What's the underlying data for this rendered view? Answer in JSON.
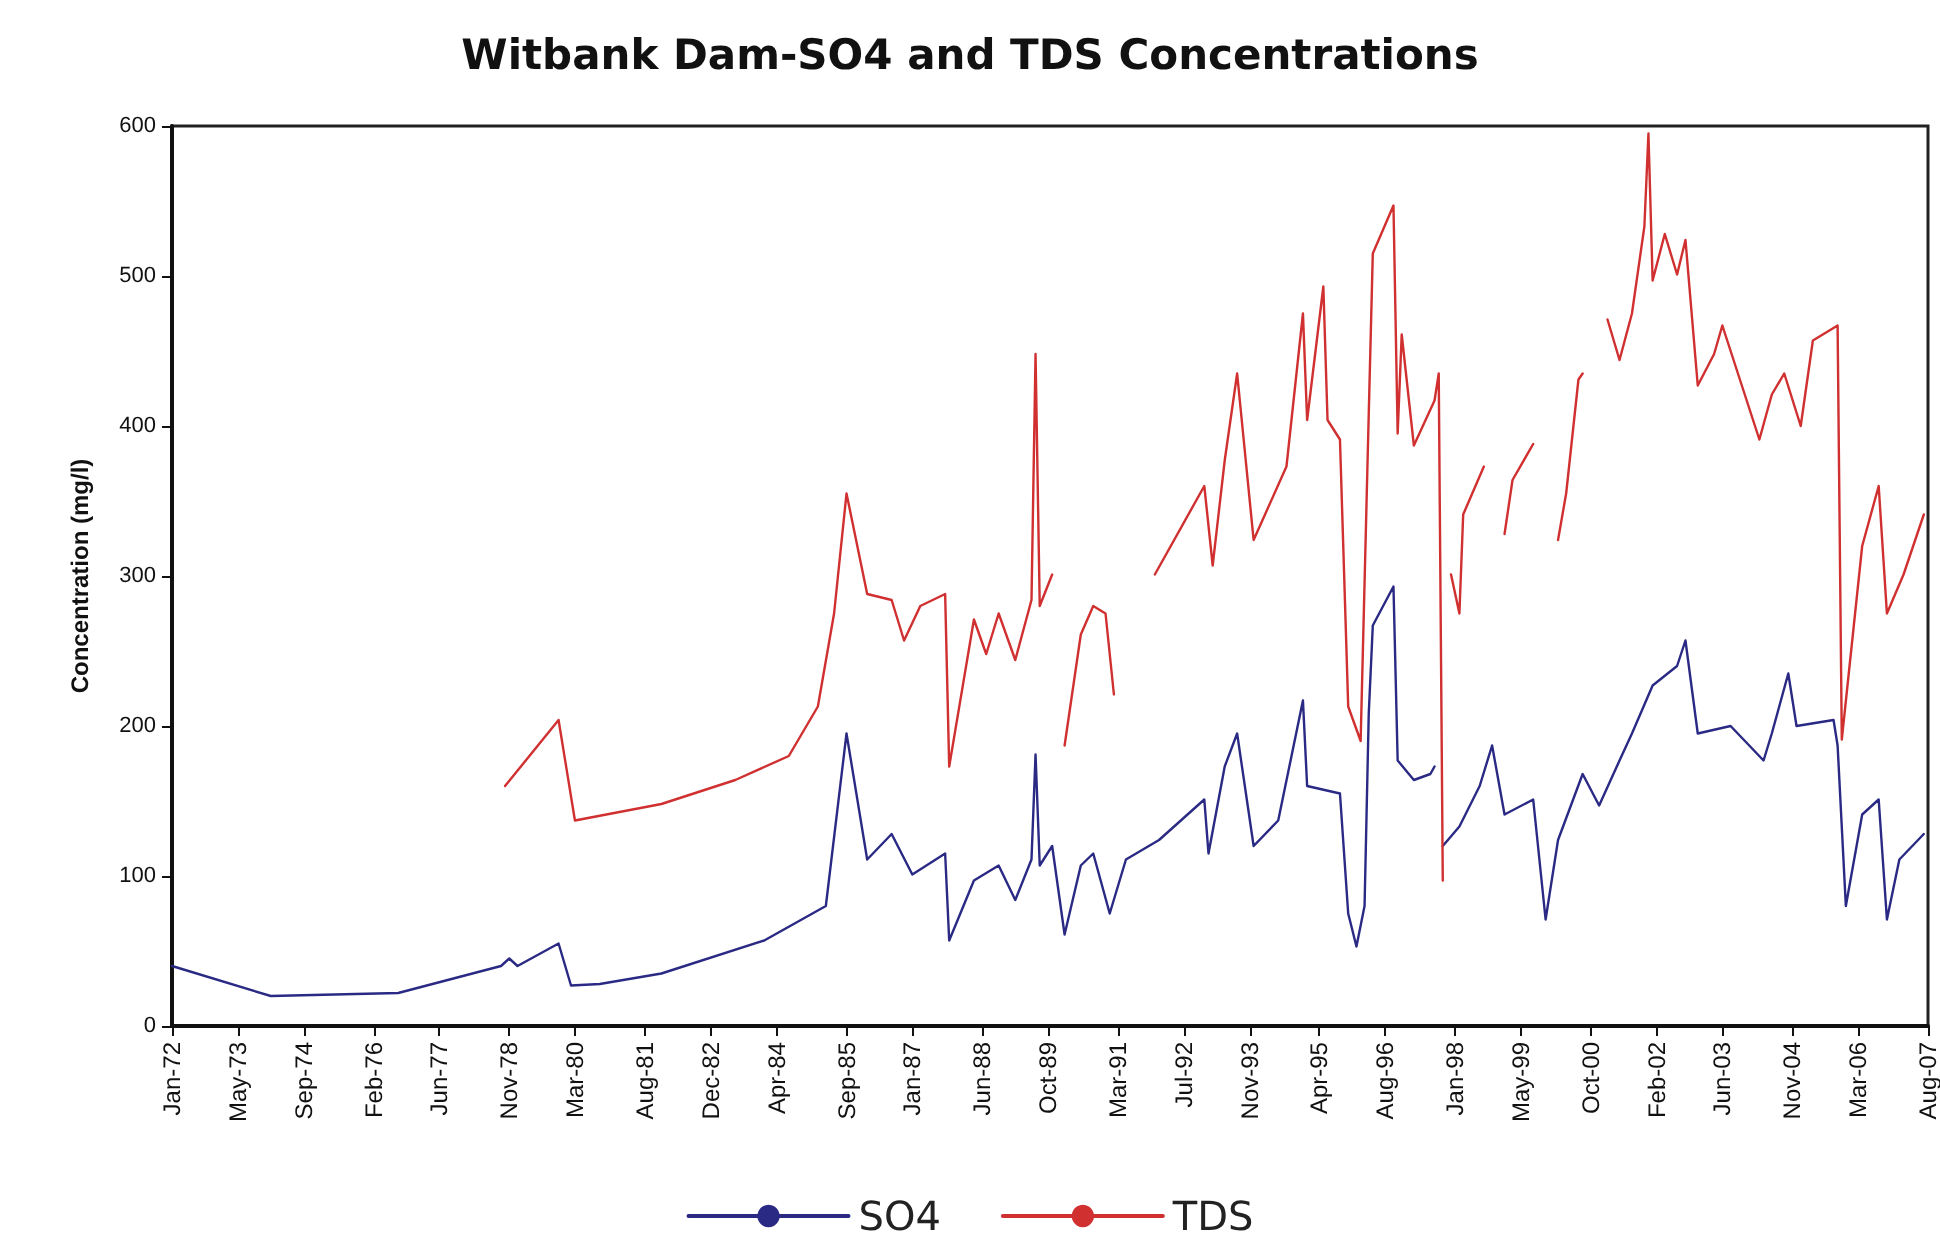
{
  "chart_data": {
    "type": "line",
    "title": "Witbank Dam-SO4 and TDS Concentrations",
    "ylabel": "Concentration (mg/l)",
    "xlim": [
      "1972-01",
      "2007-08"
    ],
    "xticks": [
      {
        "value": "1972-01",
        "label": "Jan-72"
      },
      {
        "value": "1973-05",
        "label": "May-73"
      },
      {
        "value": "1974-09",
        "label": "Sep-74"
      },
      {
        "value": "1976-02",
        "label": "Feb-76"
      },
      {
        "value": "1977-06",
        "label": "Jun-77"
      },
      {
        "value": "1978-11",
        "label": "Nov-78"
      },
      {
        "value": "1980-03",
        "label": "Mar-80"
      },
      {
        "value": "1981-08",
        "label": "Aug-81"
      },
      {
        "value": "1982-12",
        "label": "Dec-82"
      },
      {
        "value": "1984-04",
        "label": "Apr-84"
      },
      {
        "value": "1985-09",
        "label": "Sep-85"
      },
      {
        "value": "1987-01",
        "label": "Jan-87"
      },
      {
        "value": "1988-06",
        "label": "Jun-88"
      },
      {
        "value": "1989-10",
        "label": "Oct-89"
      },
      {
        "value": "1991-03",
        "label": "Mar-91"
      },
      {
        "value": "1992-07",
        "label": "Jul-92"
      },
      {
        "value": "1993-11",
        "label": "Nov-93"
      },
      {
        "value": "1995-04",
        "label": "Apr-95"
      },
      {
        "value": "1996-08",
        "label": "Aug-96"
      },
      {
        "value": "1998-01",
        "label": "Jan-98"
      },
      {
        "value": "1999-05",
        "label": "May-99"
      },
      {
        "value": "2000-10",
        "label": "Oct-00"
      },
      {
        "value": "2002-02",
        "label": "Feb-02"
      },
      {
        "value": "2003-06",
        "label": "Jun-03"
      },
      {
        "value": "2004-11",
        "label": "Nov-04"
      },
      {
        "value": "2006-03",
        "label": "Mar-06"
      },
      {
        "value": "2007-08",
        "label": "Aug-07"
      }
    ],
    "ylim": [
      0,
      600
    ],
    "yticks": [
      0,
      100,
      200,
      300,
      400,
      500,
      600
    ],
    "grid": false,
    "legend": "bottom",
    "marker": "none",
    "line_style": "solid",
    "series": [
      {
        "name": "SO4",
        "color": "#2a2a85",
        "x": [
          "1972-01",
          "1974-01",
          "1976-08",
          "1978-09",
          "1978-11",
          "1979-01",
          "1979-11",
          "1980-02",
          "1980-09",
          "1981-12",
          "1984-01",
          "1985-04",
          "1985-09",
          "1986-02",
          "1986-08",
          "1987-01",
          "1987-09",
          "1987-10",
          "1988-04",
          "1988-10",
          "1989-02",
          "1989-06",
          "1989-07",
          "1989-08",
          "1989-11",
          "1990-02",
          "1990-06",
          "1990-09",
          "1991-01",
          "1991-05",
          "1992-01",
          "1992-12",
          "1993-01",
          "1993-05",
          "1993-08",
          "1993-12",
          "1994-06",
          "1994-12",
          "1995-01",
          "1995-09",
          "1995-11",
          "1996-01",
          "1996-03",
          "1996-04",
          "1996-05",
          "1996-10",
          "1996-11",
          "1997-03",
          "1997-07",
          "1997-08",
          "1997-09",
          "1997-10",
          "1998-02",
          "1998-07",
          "1998-10",
          "1999-01",
          "1999-08",
          "1999-11",
          "2000-02",
          "2000-08",
          "2000-12",
          "2001-05",
          "2001-08",
          "2002-01",
          "2002-07",
          "2002-09",
          "2002-12",
          "2003-08",
          "2004-04",
          "2004-06",
          "2004-10",
          "2004-12",
          "2005-09",
          "2005-10",
          "2005-12",
          "2006-04",
          "2006-08",
          "2006-10",
          "2007-01",
          "2007-07"
        ],
        "values": [
          40,
          20,
          22,
          40,
          45,
          40,
          55,
          27,
          28,
          35,
          57,
          80,
          195,
          111,
          128,
          101,
          115,
          57,
          97,
          107,
          84,
          111,
          181,
          107,
          120,
          61,
          107,
          115,
          75,
          111,
          124,
          151,
          115,
          173,
          195,
          120,
          137,
          217,
          160,
          155,
          75,
          53,
          80,
          208,
          267,
          293,
          177,
          164,
          168,
          173,
          null,
          120,
          133,
          160,
          187,
          141,
          151,
          71,
          124,
          168,
          147,
          177,
          195,
          227,
          240,
          257,
          195,
          200,
          177,
          195,
          235,
          200,
          204,
          187,
          80,
          141,
          151,
          71,
          111,
          128
        ]
      },
      {
        "name": "TDS",
        "color": "#d03030",
        "x": [
          "1978-10",
          "1979-11",
          "1980-03",
          "1981-12",
          "1983-06",
          "1984-07",
          "1985-02",
          "1985-06",
          "1985-09",
          "1986-02",
          "1986-08",
          "1986-11",
          "1987-03",
          "1987-09",
          "1987-10",
          "1988-04",
          "1988-07",
          "1988-10",
          "1989-02",
          "1989-06",
          "1989-07",
          "1989-08",
          "1989-11",
          "1990-01",
          "1990-02",
          "1990-06",
          "1990-09",
          "1990-12",
          "1991-02",
          "1991-06",
          "1991-12",
          "1992-12",
          "1993-02",
          "1993-05",
          "1993-08",
          "1993-12",
          "1994-08",
          "1994-12",
          "1995-01",
          "1995-05",
          "1995-06",
          "1995-09",
          "1995-11",
          "1996-02",
          "1996-04",
          "1996-05",
          "1996-10",
          "1996-11",
          "1996-12",
          "1997-03",
          "1997-08",
          "1997-09",
          "1997-10",
          "1997-11",
          "1997-12",
          "1998-02",
          "1998-03",
          "1998-08",
          "1998-10",
          "1999-01",
          "1999-03",
          "1999-08",
          "1999-11",
          "2000-02",
          "2000-04",
          "2000-07",
          "2000-08",
          "2000-10",
          "2001-02",
          "2001-05",
          "2001-08",
          "2001-11",
          "2001-12",
          "2002-01",
          "2002-04",
          "2002-07",
          "2002-09",
          "2002-12",
          "2003-04",
          "2003-06",
          "2004-03",
          "2004-06",
          "2004-09",
          "2005-01",
          "2005-04",
          "2005-10",
          "2005-11",
          "2006-04",
          "2006-08",
          "2006-10",
          "2007-02",
          "2007-07"
        ],
        "values": [
          160,
          204,
          137,
          148,
          164,
          180,
          213,
          275,
          355,
          288,
          284,
          257,
          280,
          288,
          173,
          271,
          248,
          275,
          244,
          284,
          448,
          280,
          301,
          null,
          187,
          261,
          280,
          275,
          221,
          null,
          301,
          360,
          307,
          377,
          435,
          324,
          373,
          475,
          404,
          493,
          404,
          391,
          213,
          190,
          408,
          515,
          547,
          395,
          461,
          387,
          417,
          435,
          97,
          null,
          301,
          275,
          341,
          373,
          null,
          328,
          364,
          388,
          null,
          324,
          355,
          431,
          435,
          null,
          471,
          444,
          475,
          533,
          595,
          497,
          528,
          501,
          524,
          427,
          448,
          467,
          391,
          421,
          435,
          400,
          457,
          467,
          191,
          320,
          360,
          275,
          301,
          341
        ]
      }
    ]
  }
}
